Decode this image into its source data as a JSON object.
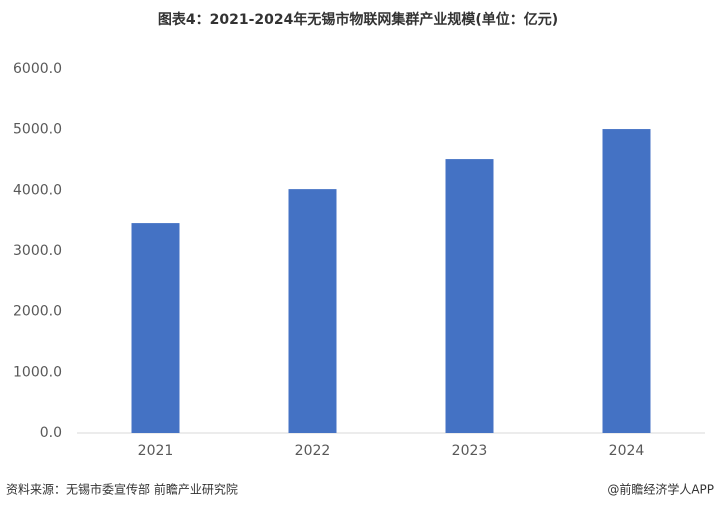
{
  "chart_data": {
    "type": "bar",
    "title": "图表4：2021-2024年无锡市物联网集群产业规模(单位：亿元)",
    "categories": [
      "2021",
      "2022",
      "2023",
      "2024"
    ],
    "values": [
      3460,
      4020,
      4515,
      5010
    ],
    "color": "#4472c4",
    "ylim": [
      0,
      6000
    ],
    "yticks": [
      {
        "value": 0,
        "label": "0.0"
      },
      {
        "value": 1000,
        "label": "1000.0"
      },
      {
        "value": 2000,
        "label": "2000.0"
      },
      {
        "value": 3000,
        "label": "3000.0"
      },
      {
        "value": 4000,
        "label": "4000.0"
      },
      {
        "value": 5000,
        "label": "5000.0"
      },
      {
        "value": 6000,
        "label": "6000.0"
      }
    ],
    "grid": false,
    "source": "资料来源：无锡市委宣传部 前瞻产业研究院",
    "credit": "@前瞻经济学人APP"
  }
}
